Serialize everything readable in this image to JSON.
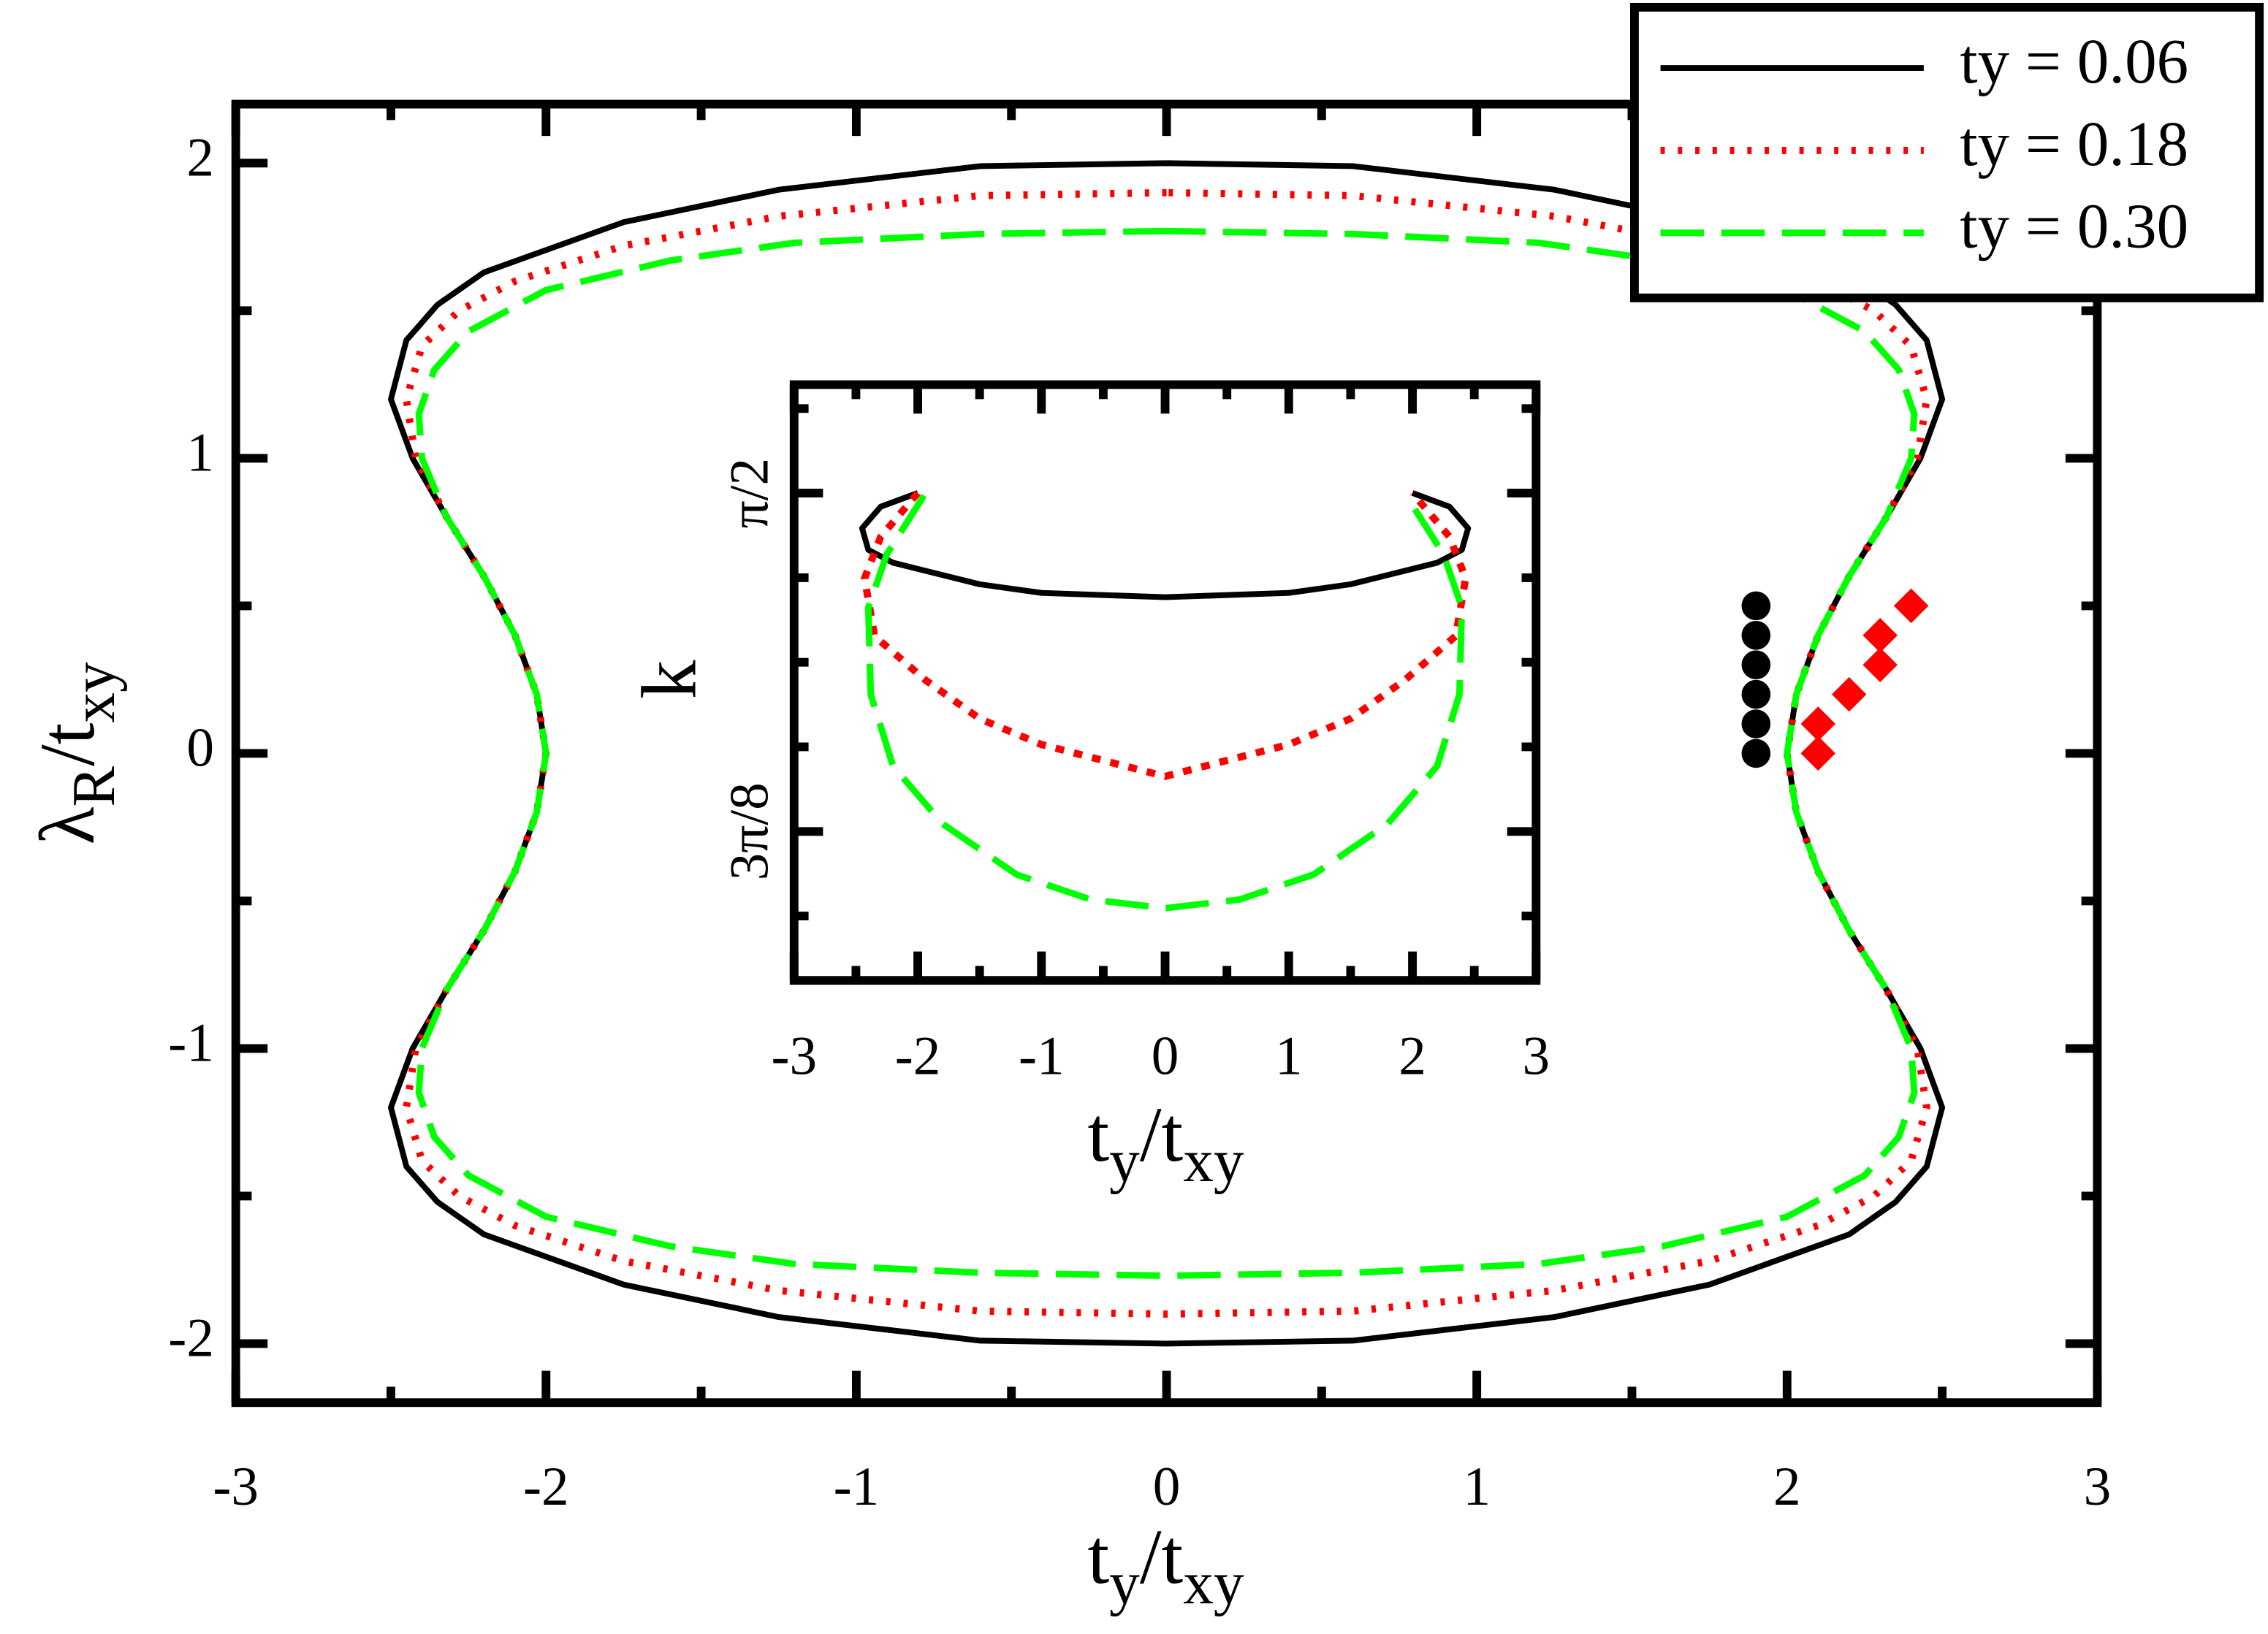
{
  "chart_data": [
    {
      "type": "line",
      "xlabel": [
        "t",
        "y",
        "/t",
        "xy"
      ],
      "ylabel": [
        "λ",
        "R",
        "/t",
        "xy"
      ],
      "xlim": [
        -3,
        3
      ],
      "ylim": [
        -2.2,
        2.2
      ],
      "xticks": [
        -3,
        -2,
        -1,
        0,
        1,
        2,
        3
      ],
      "yticks": [
        -2,
        -1,
        0,
        1,
        2
      ],
      "xminorticks": [
        -2.5,
        -1.5,
        -0.5,
        0.5,
        1.5,
        2.5
      ],
      "yminorticks": [
        -1.5,
        -0.5,
        0.5,
        1.5
      ],
      "legend": "upper right",
      "series": [
        {
          "name": "ty = 0.06",
          "color": "#000000",
          "style": "solid",
          "x": [
            0,
            -0.6,
            -1.25,
            -1.75,
            -2.2,
            -2.35,
            -2.45,
            -2.5,
            -2.43,
            -2.32,
            -2.2,
            -2.1,
            -2.03,
            -2.0,
            -2.03,
            -2.1,
            -2.2,
            -2.32,
            -2.43,
            -2.5,
            -2.45,
            -2.35,
            -2.2,
            -1.75,
            -1.25,
            -0.6,
            0,
            0.6,
            1.25,
            1.75,
            2.2,
            2.35,
            2.45,
            2.5,
            2.43,
            2.32,
            2.2,
            2.1,
            2.03,
            2.0,
            2.03,
            2.1,
            2.2,
            2.32,
            2.43,
            2.5,
            2.45,
            2.35,
            2.2,
            1.75,
            1.25,
            0.6,
            0
          ],
          "values": [
            2.0,
            1.99,
            1.91,
            1.8,
            1.63,
            1.52,
            1.4,
            1.2,
            1.0,
            0.8,
            0.6,
            0.4,
            0.2,
            0,
            -0.2,
            -0.4,
            -0.6,
            -0.8,
            -1.0,
            -1.2,
            -1.4,
            -1.52,
            -1.63,
            -1.8,
            -1.91,
            -1.99,
            -2.0,
            -1.99,
            -1.91,
            -1.8,
            -1.63,
            -1.52,
            -1.4,
            -1.2,
            -1.0,
            -0.8,
            -0.6,
            -0.4,
            -0.2,
            0,
            0.2,
            0.4,
            0.6,
            0.8,
            1.0,
            1.2,
            1.4,
            1.52,
            1.63,
            1.8,
            1.91,
            1.99,
            2.0
          ]
        },
        {
          "name": "ty = 0.18",
          "color": "#ff0000",
          "style": "dotted",
          "x": [
            0,
            -0.6,
            -1.25,
            -1.75,
            -2.1,
            -2.28,
            -2.4,
            -2.45,
            -2.42,
            -2.32,
            -2.2,
            -2.1,
            -2.03,
            -2.0,
            -2.03,
            -2.1,
            -2.2,
            -2.32,
            -2.42,
            -2.45,
            -2.4,
            -2.28,
            -2.1,
            -1.75,
            -1.25,
            -0.6,
            0,
            0.6,
            1.25,
            1.75,
            2.1,
            2.28,
            2.4,
            2.45,
            2.42,
            2.32,
            2.2,
            2.1,
            2.03,
            2.0,
            2.03,
            2.1,
            2.2,
            2.32,
            2.42,
            2.45,
            2.4,
            2.28,
            2.1,
            1.75,
            1.25,
            0.6,
            0
          ],
          "values": [
            1.9,
            1.89,
            1.82,
            1.72,
            1.6,
            1.5,
            1.38,
            1.2,
            1.0,
            0.8,
            0.6,
            0.4,
            0.2,
            0,
            -0.2,
            -0.4,
            -0.6,
            -0.8,
            -1.0,
            -1.2,
            -1.38,
            -1.5,
            -1.6,
            -1.72,
            -1.82,
            -1.89,
            -1.9,
            -1.89,
            -1.82,
            -1.72,
            -1.6,
            -1.5,
            -1.38,
            -1.2,
            -1.0,
            -0.8,
            -0.6,
            -0.4,
            -0.2,
            0,
            0.2,
            0.4,
            0.6,
            0.8,
            1.0,
            1.2,
            1.38,
            1.5,
            1.6,
            1.72,
            1.82,
            1.89,
            1.9
          ]
        },
        {
          "name": "ty = 0.30",
          "color": "#00ff00",
          "style": "dashed",
          "x": [
            0,
            -0.6,
            -1.2,
            -1.6,
            -2.0,
            -2.25,
            -2.36,
            -2.41,
            -2.4,
            -2.32,
            -2.2,
            -2.1,
            -2.03,
            -2.0,
            -2.03,
            -2.1,
            -2.2,
            -2.32,
            -2.4,
            -2.41,
            -2.36,
            -2.25,
            -2.0,
            -1.6,
            -1.2,
            -0.6,
            0,
            0.6,
            1.2,
            1.6,
            2.0,
            2.25,
            2.36,
            2.41,
            2.4,
            2.32,
            2.2,
            2.1,
            2.03,
            2.0,
            2.03,
            2.1,
            2.2,
            2.32,
            2.4,
            2.41,
            2.36,
            2.25,
            2.0,
            1.6,
            1.2,
            0.6,
            0
          ],
          "values": [
            1.77,
            1.76,
            1.73,
            1.67,
            1.57,
            1.43,
            1.3,
            1.15,
            1.0,
            0.8,
            0.6,
            0.4,
            0.2,
            0,
            -0.2,
            -0.4,
            -0.6,
            -0.8,
            -1.0,
            -1.15,
            -1.3,
            -1.43,
            -1.57,
            -1.67,
            -1.73,
            -1.76,
            -1.77,
            -1.76,
            -1.73,
            -1.67,
            -1.57,
            -1.43,
            -1.3,
            -1.15,
            -1.0,
            -0.8,
            -0.6,
            -0.4,
            -0.2,
            0,
            0.2,
            0.4,
            0.6,
            0.8,
            1.0,
            1.15,
            1.3,
            1.43,
            1.57,
            1.67,
            1.73,
            1.76,
            1.77
          ]
        },
        {
          "color": "#000000",
          "marker": "circle",
          "x": [
            1.9,
            1.9,
            1.9,
            1.9,
            1.9,
            1.9
          ],
          "values": [
            0,
            0.1,
            0.2,
            0.3,
            0.4,
            0.5
          ]
        },
        {
          "color": "#ff0000",
          "marker": "diamond",
          "x": [
            2.1,
            2.1,
            2.2,
            2.3,
            2.3,
            2.4
          ],
          "values": [
            0,
            0.1,
            0.2,
            0.3,
            0.4,
            0.5
          ]
        }
      ]
    },
    {
      "type": "line",
      "xlabel": [
        "t",
        "y",
        "/t",
        "xy"
      ],
      "ylabel": [
        "k"
      ],
      "xlim": [
        -3,
        3
      ],
      "ylim": [
        1.0052,
        1.6967
      ],
      "xticks": [
        -3,
        -2,
        -1,
        0,
        1,
        2,
        3
      ],
      "yticks": [
        {
          "value": 1.1781,
          "label": "3π/8"
        },
        {
          "value": 1.5708,
          "label": "π/2"
        }
      ],
      "xminorticks": [
        -2.5,
        -1.5,
        -0.5,
        0.5,
        1.5,
        2.5
      ],
      "yminorticks": [
        1.0799,
        1.2763,
        1.3744,
        1.4726,
        1.669
      ],
      "series": [
        {
          "color": "#000000",
          "style": "solid",
          "x": [
            -2,
            -2.3,
            -2.45,
            -2.4,
            -2.2,
            -1.5,
            -1,
            0,
            1,
            1.5,
            2.2,
            2.4,
            2.45,
            2.3,
            2
          ],
          "values": [
            1.571,
            1.555,
            1.53,
            1.505,
            1.49,
            1.465,
            1.455,
            1.45,
            1.455,
            1.465,
            1.49,
            1.505,
            1.53,
            1.555,
            1.571
          ]
        },
        {
          "color": "#ff0000",
          "style": "dotted",
          "x": [
            -2,
            -2.3,
            -2.43,
            -2.35,
            -1.94,
            -1.5,
            -1,
            0,
            1,
            1.5,
            1.94,
            2.35,
            2.43,
            2.3,
            2
          ],
          "values": [
            1.571,
            1.52,
            1.472,
            1.405,
            1.354,
            1.309,
            1.279,
            1.242,
            1.279,
            1.309,
            1.354,
            1.405,
            1.472,
            1.52,
            1.571
          ]
        },
        {
          "color": "#00ff00",
          "style": "dashed",
          "x": [
            -1.95,
            -2.25,
            -2.4,
            -2.38,
            -2.2,
            -1.8,
            -1.2,
            -0.6,
            0,
            0.6,
            1.2,
            1.8,
            2.2,
            2.38,
            2.4,
            2.25,
            1.95
          ],
          "values": [
            1.568,
            1.5,
            1.438,
            1.337,
            1.254,
            1.187,
            1.128,
            1.099,
            1.089,
            1.099,
            1.128,
            1.187,
            1.254,
            1.337,
            1.438,
            1.5,
            1.568
          ]
        }
      ]
    }
  ]
}
